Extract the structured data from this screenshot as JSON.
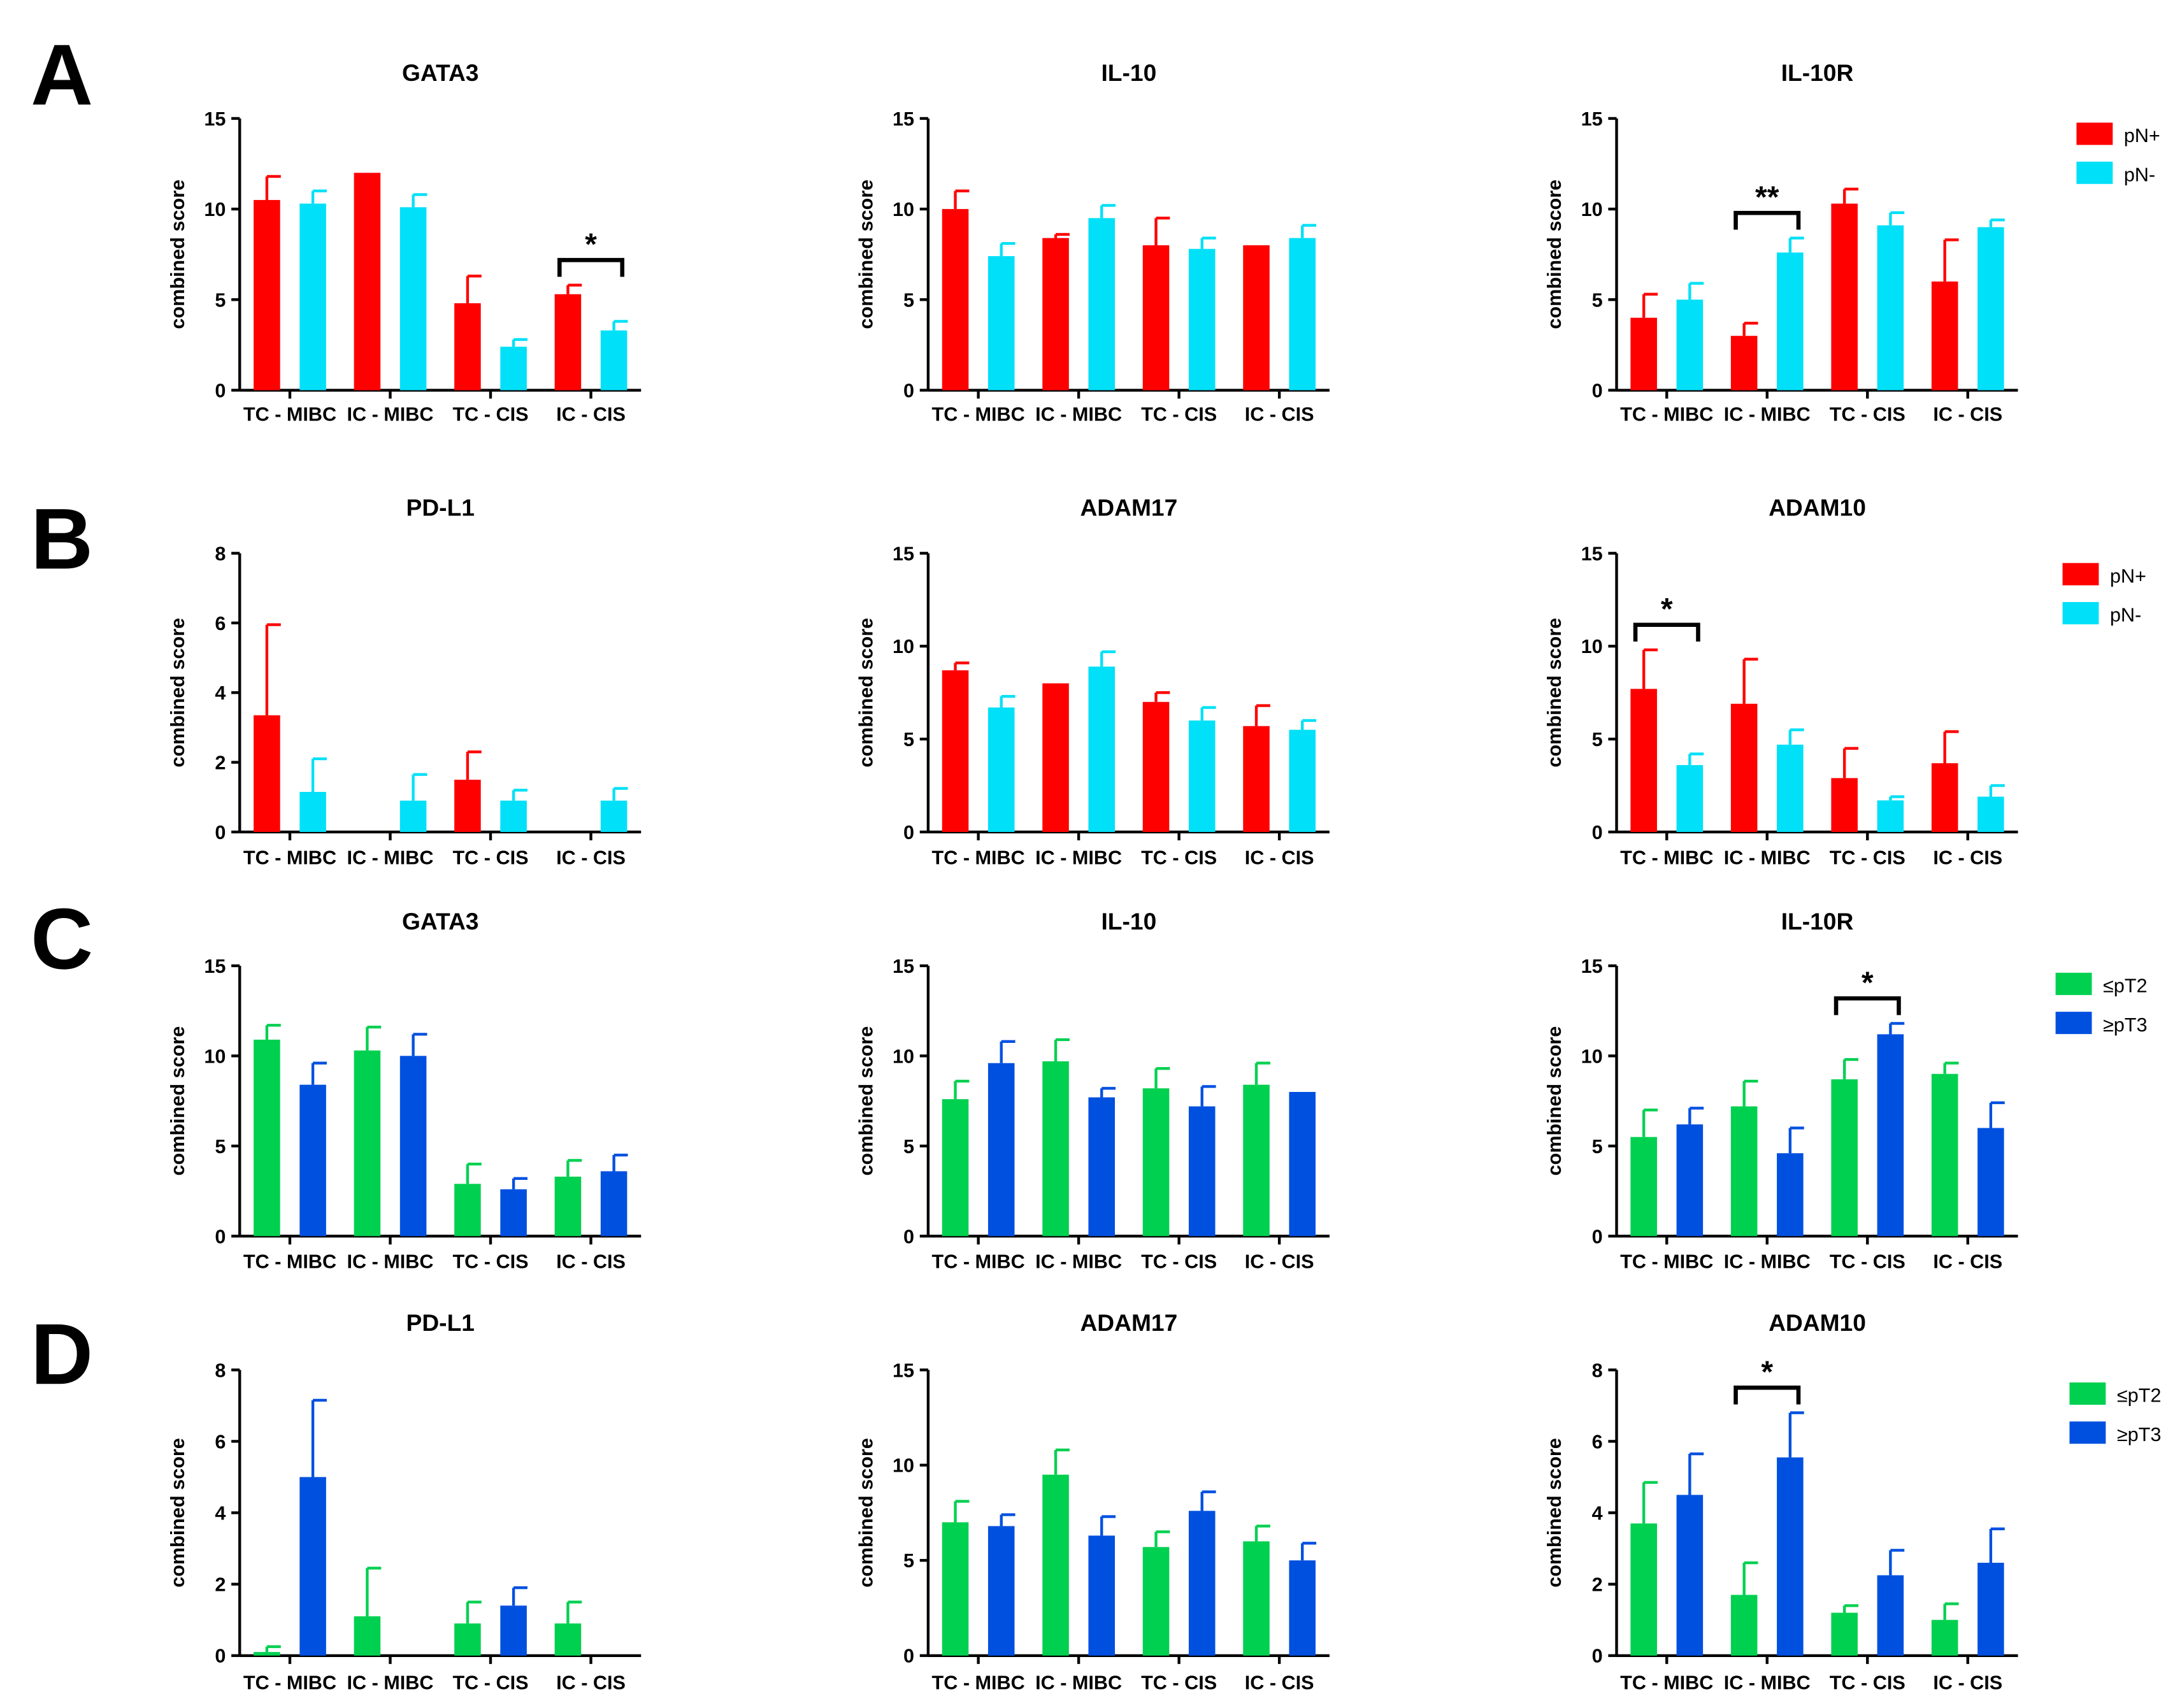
{
  "colors": {
    "pN_pos": "#ff0000",
    "pN_neg": "#00e0f8",
    "le_pT2": "#00d050",
    "ge_pT3": "#0050e0",
    "axis": "#000000"
  },
  "rows": [
    {
      "label": "A",
      "legend": [
        "pN+",
        "pN-"
      ],
      "colors": [
        "pN_pos",
        "pN_neg"
      ]
    },
    {
      "label": "B",
      "legend": [
        "pN+",
        "pN-"
      ],
      "colors": [
        "pN_pos",
        "pN_neg"
      ]
    },
    {
      "label": "C",
      "legend": [
        "≤pT2",
        "≥pT3"
      ],
      "colors": [
        "le_pT2",
        "ge_pT3"
      ]
    },
    {
      "label": "D",
      "legend": [
        "≤pT2",
        "≥pT3"
      ],
      "colors": [
        "le_pT2",
        "ge_pT3"
      ]
    }
  ],
  "chart_data": [
    {
      "type": "bar",
      "row": 0,
      "col": 0,
      "title": "GATA3",
      "ylabel": "combined score",
      "ylim": [
        0,
        15
      ],
      "yticks": [
        0,
        5,
        10,
        15
      ],
      "categories": [
        "TC - MIBC",
        "IC - MIBC",
        "TC - CIS",
        "IC - CIS"
      ],
      "series": [
        {
          "name": "pN+",
          "values": [
            10.5,
            12.0,
            4.8,
            5.3
          ],
          "errors": [
            1.3,
            0,
            1.5,
            0.5
          ]
        },
        {
          "name": "pN-",
          "values": [
            10.3,
            10.1,
            2.4,
            3.3
          ],
          "errors": [
            0.7,
            0.7,
            0.4,
            0.5
          ]
        }
      ],
      "annotations": [
        {
          "text": "*",
          "group": 3
        }
      ]
    },
    {
      "type": "bar",
      "row": 0,
      "col": 1,
      "title": "IL-10",
      "ylabel": "combined score",
      "ylim": [
        0,
        15
      ],
      "yticks": [
        0,
        5,
        10,
        15
      ],
      "categories": [
        "TC - MIBC",
        "IC - MIBC",
        "TC - CIS",
        "IC - CIS"
      ],
      "series": [
        {
          "name": "pN+",
          "values": [
            10.0,
            8.4,
            8.0,
            8.0
          ],
          "errors": [
            1.0,
            0.2,
            1.5,
            0
          ]
        },
        {
          "name": "pN-",
          "values": [
            7.4,
            9.5,
            7.8,
            8.4
          ],
          "errors": [
            0.7,
            0.7,
            0.6,
            0.7
          ]
        }
      ],
      "annotations": []
    },
    {
      "type": "bar",
      "row": 0,
      "col": 2,
      "title": "IL-10R",
      "ylabel": "combined score",
      "ylim": [
        0,
        15
      ],
      "yticks": [
        0,
        5,
        10,
        15
      ],
      "categories": [
        "TC - MIBC",
        "IC - MIBC",
        "TC - CIS",
        "IC - CIS"
      ],
      "series": [
        {
          "name": "pN+",
          "values": [
            4.0,
            3.0,
            10.3,
            6.0
          ],
          "errors": [
            1.3,
            0.7,
            0.8,
            2.3
          ]
        },
        {
          "name": "pN-",
          "values": [
            5.0,
            7.6,
            9.1,
            9.0
          ],
          "errors": [
            0.9,
            0.8,
            0.7,
            0.4
          ]
        }
      ],
      "annotations": [
        {
          "text": "**",
          "group": 1
        }
      ]
    },
    {
      "type": "bar",
      "row": 1,
      "col": 0,
      "title": "PD-L1",
      "ylabel": "combined score",
      "ylim": [
        0,
        8
      ],
      "yticks": [
        0,
        2,
        4,
        6,
        8
      ],
      "categories": [
        "TC - MIBC",
        "IC - MIBC",
        "TC - CIS",
        "IC - CIS"
      ],
      "series": [
        {
          "name": "pN+",
          "values": [
            3.35,
            0,
            1.5,
            0
          ],
          "errors": [
            2.6,
            0,
            0.8,
            0
          ]
        },
        {
          "name": "pN-",
          "values": [
            1.15,
            0.9,
            0.9,
            0.9
          ],
          "errors": [
            0.95,
            0.75,
            0.3,
            0.35
          ]
        }
      ],
      "annotations": []
    },
    {
      "type": "bar",
      "row": 1,
      "col": 1,
      "title": "ADAM17",
      "ylabel": "combined score",
      "ylim": [
        0,
        15
      ],
      "yticks": [
        0,
        5,
        10,
        15
      ],
      "categories": [
        "TC - MIBC",
        "IC - MIBC",
        "TC - CIS",
        "IC - CIS"
      ],
      "series": [
        {
          "name": "pN+",
          "values": [
            8.7,
            8.0,
            7.0,
            5.7
          ],
          "errors": [
            0.4,
            0,
            0.5,
            1.1
          ]
        },
        {
          "name": "pN-",
          "values": [
            6.7,
            8.9,
            6.0,
            5.5
          ],
          "errors": [
            0.6,
            0.8,
            0.7,
            0.5
          ]
        }
      ],
      "annotations": []
    },
    {
      "type": "bar",
      "row": 1,
      "col": 2,
      "title": "ADAM10",
      "ylabel": "combined score",
      "ylim": [
        0,
        15
      ],
      "yticks": [
        0,
        5,
        10,
        15
      ],
      "categories": [
        "TC - MIBC",
        "IC - MIBC",
        "TC - CIS",
        "IC - CIS"
      ],
      "series": [
        {
          "name": "pN+",
          "values": [
            7.7,
            6.9,
            2.9,
            3.7
          ],
          "errors": [
            2.1,
            2.4,
            1.6,
            1.7
          ]
        },
        {
          "name": "pN-",
          "values": [
            3.6,
            4.7,
            1.7,
            1.9
          ],
          "errors": [
            0.6,
            0.8,
            0.2,
            0.6
          ]
        }
      ],
      "annotations": [
        {
          "text": "*",
          "group": 0
        }
      ]
    },
    {
      "type": "bar",
      "row": 2,
      "col": 0,
      "title": "GATA3",
      "ylabel": "combined score",
      "ylim": [
        0,
        15
      ],
      "yticks": [
        0,
        5,
        10,
        15
      ],
      "categories": [
        "TC - MIBC",
        "IC - MIBC",
        "TC - CIS",
        "IC - CIS"
      ],
      "series": [
        {
          "name": "≤pT2",
          "values": [
            10.9,
            10.3,
            2.9,
            3.3
          ],
          "errors": [
            0.8,
            1.3,
            1.1,
            0.9
          ]
        },
        {
          "name": "≥pT3",
          "values": [
            8.4,
            10.0,
            2.6,
            3.6
          ],
          "errors": [
            1.2,
            1.2,
            0.6,
            0.9
          ]
        }
      ],
      "annotations": []
    },
    {
      "type": "bar",
      "row": 2,
      "col": 1,
      "title": "IL-10",
      "ylabel": "combined score",
      "ylim": [
        0,
        15
      ],
      "yticks": [
        0,
        5,
        10,
        15
      ],
      "categories": [
        "TC - MIBC",
        "IC - MIBC",
        "TC - CIS",
        "IC - CIS"
      ],
      "series": [
        {
          "name": "≤pT2",
          "values": [
            7.6,
            9.7,
            8.2,
            8.4
          ],
          "errors": [
            1.0,
            1.2,
            1.1,
            1.2
          ]
        },
        {
          "name": "≥pT3",
          "values": [
            9.6,
            7.7,
            7.2,
            8.0
          ],
          "errors": [
            1.2,
            0.5,
            1.1,
            0
          ]
        }
      ],
      "annotations": []
    },
    {
      "type": "bar",
      "row": 2,
      "col": 2,
      "title": "IL-10R",
      "ylabel": "combined score",
      "ylim": [
        0,
        15
      ],
      "yticks": [
        0,
        5,
        10,
        15
      ],
      "categories": [
        "TC - MIBC",
        "IC - MIBC",
        "TC - CIS",
        "IC - CIS"
      ],
      "series": [
        {
          "name": "≤pT2",
          "values": [
            5.5,
            7.2,
            8.7,
            9.0
          ],
          "errors": [
            1.5,
            1.4,
            1.1,
            0.6
          ]
        },
        {
          "name": "≥pT3",
          "values": [
            6.2,
            4.6,
            11.2,
            6.0
          ],
          "errors": [
            0.9,
            1.4,
            0.6,
            1.4
          ]
        }
      ],
      "annotations": [
        {
          "text": "*",
          "group": 2
        }
      ]
    },
    {
      "type": "bar",
      "row": 3,
      "col": 0,
      "title": "PD-L1",
      "ylabel": "combined score",
      "ylim": [
        0,
        8
      ],
      "yticks": [
        0,
        2,
        4,
        6,
        8
      ],
      "categories": [
        "TC - MIBC",
        "IC - MIBC",
        "TC - CIS",
        "IC - CIS"
      ],
      "series": [
        {
          "name": "≤pT2",
          "values": [
            0.1,
            1.1,
            0.9,
            0.9
          ],
          "errors": [
            0.15,
            1.35,
            0.6,
            0.6
          ]
        },
        {
          "name": "≥pT3",
          "values": [
            5.0,
            0,
            1.4,
            0
          ],
          "errors": [
            2.15,
            0,
            0.5,
            0
          ]
        }
      ],
      "annotations": []
    },
    {
      "type": "bar",
      "row": 3,
      "col": 1,
      "title": "ADAM17",
      "ylabel": "combined score",
      "ylim": [
        0,
        15
      ],
      "yticks": [
        0,
        5,
        10,
        15
      ],
      "categories": [
        "TC - MIBC",
        "IC - MIBC",
        "TC - CIS",
        "IC - CIS"
      ],
      "series": [
        {
          "name": "≤pT2",
          "values": [
            7.0,
            9.5,
            5.7,
            6.0
          ],
          "errors": [
            1.1,
            1.3,
            0.8,
            0.8
          ]
        },
        {
          "name": "≥pT3",
          "values": [
            6.8,
            6.3,
            7.6,
            5.0
          ],
          "errors": [
            0.6,
            1.0,
            1.0,
            0.9
          ]
        }
      ],
      "annotations": []
    },
    {
      "type": "bar",
      "row": 3,
      "col": 2,
      "title": "ADAM10",
      "ylabel": "combined score",
      "ylim": [
        0,
        8
      ],
      "yticks": [
        0,
        2,
        4,
        6,
        8
      ],
      "categories": [
        "TC - MIBC",
        "IC - MIBC",
        "TC - CIS",
        "IC - CIS"
      ],
      "series": [
        {
          "name": "≤pT2",
          "values": [
            3.7,
            1.7,
            1.2,
            1.0
          ],
          "errors": [
            1.15,
            0.9,
            0.2,
            0.45
          ]
        },
        {
          "name": "≥pT3",
          "values": [
            4.5,
            5.55,
            2.25,
            2.6
          ],
          "errors": [
            1.15,
            1.25,
            0.7,
            0.95
          ]
        }
      ],
      "annotations": [
        {
          "text": "*",
          "group": 1
        }
      ]
    }
  ]
}
